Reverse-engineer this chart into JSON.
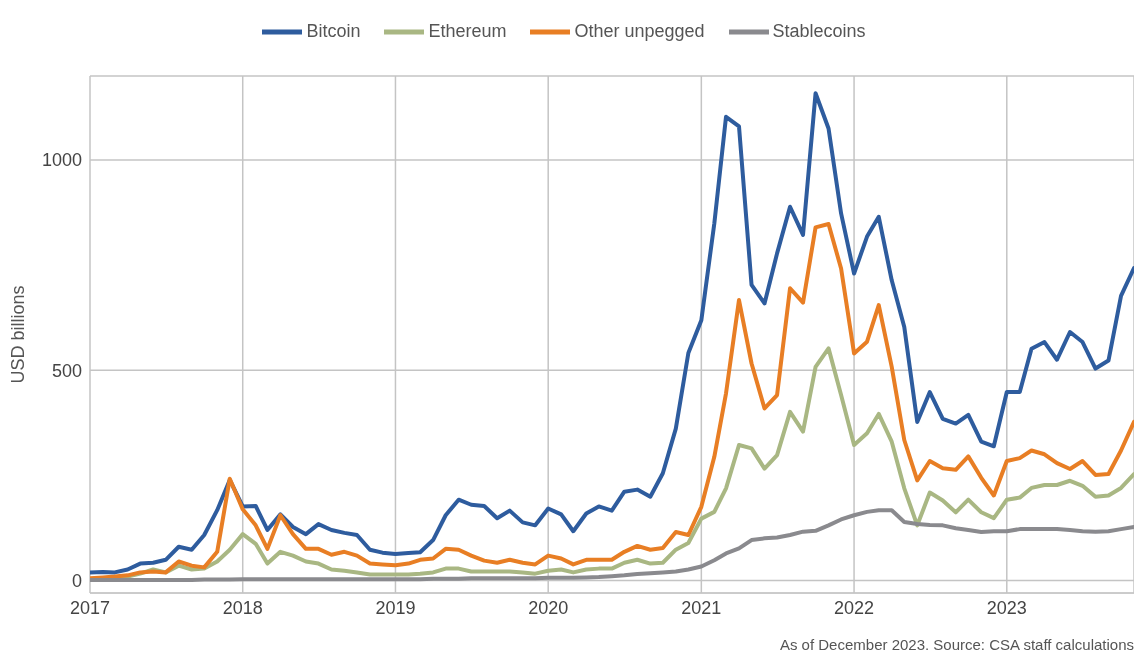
{
  "chart_data": {
    "type": "line",
    "ylabel": "USD billions",
    "legend": "top",
    "grid": true,
    "marker": "none",
    "line_style": "solid",
    "annotations": [
      "As of December 2023. Source: CSA staff calculations"
    ],
    "xlim": [
      "2017-01-01",
      "2023-11-01"
    ],
    "xticks": [
      "2017",
      "2018",
      "2019",
      "2020",
      "2021",
      "2022",
      "2023"
    ],
    "ylim": [
      -30,
      1200
    ],
    "yticks": [
      0,
      500,
      1000
    ],
    "x": [
      "2017-01",
      "2017-02",
      "2017-03",
      "2017-04",
      "2017-05",
      "2017-06",
      "2017-07",
      "2017-08",
      "2017-09",
      "2017-10",
      "2017-11",
      "2017-12",
      "2018-01",
      "2018-02",
      "2018-03",
      "2018-04",
      "2018-05",
      "2018-06",
      "2018-07",
      "2018-08",
      "2018-09",
      "2018-10",
      "2018-11",
      "2018-12",
      "2019-01",
      "2019-02",
      "2019-03",
      "2019-04",
      "2019-05",
      "2019-06",
      "2019-07",
      "2019-08",
      "2019-09",
      "2019-10",
      "2019-11",
      "2019-12",
      "2020-01",
      "2020-02",
      "2020-03",
      "2020-04",
      "2020-05",
      "2020-06",
      "2020-07",
      "2020-08",
      "2020-09",
      "2020-10",
      "2020-11",
      "2020-12",
      "2021-01",
      "2021-02",
      "2021-03",
      "2021-04",
      "2021-05",
      "2021-06",
      "2021-07",
      "2021-08",
      "2021-09",
      "2021-10",
      "2021-11",
      "2021-12",
      "2022-01",
      "2022-02",
      "2022-03",
      "2022-04",
      "2022-05",
      "2022-06",
      "2022-07",
      "2022-08",
      "2022-09",
      "2022-10",
      "2022-11",
      "2022-12",
      "2023-01",
      "2023-02",
      "2023-03",
      "2023-04",
      "2023-05",
      "2023-06",
      "2023-07",
      "2023-08",
      "2023-09",
      "2023-10",
      "2023-11"
    ],
    "series": [
      {
        "name": "Bitcoin",
        "color": "#2e5c9e",
        "values": [
          19,
          20,
          19,
          26,
          40,
          42,
          49,
          80,
          73,
          108,
          167,
          239,
          176,
          177,
          120,
          157,
          127,
          110,
          134,
          120,
          113,
          108,
          73,
          66,
          63,
          65,
          67,
          96,
          155,
          192,
          180,
          177,
          148,
          166,
          138,
          131,
          171,
          157,
          117,
          159,
          176,
          166,
          211,
          216,
          199,
          255,
          361,
          541,
          619,
          849,
          1103,
          1080,
          703,
          659,
          778,
          889,
          822,
          1159,
          1075,
          873,
          730,
          818,
          865,
          714,
          603,
          377,
          448,
          384,
          373,
          394,
          330,
          319,
          448,
          448,
          551,
          567,
          525,
          591,
          567,
          504,
          523,
          677,
          743
        ]
      },
      {
        "name": "Ethereum",
        "color": "#a9b783",
        "values": [
          3,
          4,
          6,
          9,
          16,
          26,
          19,
          35,
          26,
          28,
          45,
          73,
          110,
          87,
          40,
          68,
          59,
          45,
          40,
          26,
          23,
          19,
          14,
          14,
          14,
          14,
          16,
          19,
          28,
          28,
          21,
          21,
          21,
          21,
          19,
          16,
          23,
          26,
          19,
          26,
          28,
          28,
          42,
          49,
          40,
          42,
          73,
          89,
          147,
          163,
          219,
          322,
          314,
          266,
          298,
          401,
          354,
          508,
          552,
          441,
          322,
          350,
          396,
          330,
          219,
          131,
          209,
          190,
          162,
          192,
          162,
          148,
          192,
          197,
          220,
          227,
          227,
          237,
          225,
          199,
          202,
          220,
          253
        ]
      },
      {
        "name": "Other unpegged",
        "color": "#e87e24",
        "values": [
          5,
          7,
          9,
          12,
          19,
          21,
          19,
          45,
          35,
          31,
          68,
          242,
          169,
          131,
          75,
          155,
          110,
          75,
          75,
          61,
          68,
          59,
          40,
          38,
          36,
          40,
          49,
          52,
          75,
          73,
          59,
          47,
          42,
          49,
          42,
          38,
          59,
          52,
          38,
          49,
          49,
          49,
          68,
          82,
          73,
          77,
          115,
          108,
          175,
          294,
          445,
          667,
          516,
          409,
          441,
          695,
          661,
          840,
          848,
          742,
          540,
          568,
          655,
          508,
          334,
          238,
          284,
          267,
          263,
          295,
          244,
          202,
          284,
          291,
          309,
          300,
          279,
          265,
          284,
          251,
          253,
          309,
          377
        ]
      },
      {
        "name": "Stablecoins",
        "color": "#8a8a8e",
        "values": [
          1,
          1,
          1,
          1,
          1,
          1,
          1,
          1,
          1,
          2,
          2,
          2,
          3,
          3,
          3,
          3,
          3,
          3,
          3,
          3,
          3,
          3,
          3,
          3,
          3,
          3,
          3,
          4,
          4,
          4,
          5,
          5,
          5,
          5,
          5,
          5,
          6,
          6,
          6,
          7,
          8,
          10,
          12,
          15,
          17,
          19,
          21,
          26,
          33,
          48,
          64,
          76,
          96,
          100,
          102,
          108,
          116,
          118,
          131,
          145,
          155,
          163,
          167,
          167,
          139,
          134,
          132,
          131,
          124,
          120,
          115,
          117,
          117,
          122,
          122,
          122,
          122,
          120,
          117,
          116,
          117,
          122,
          127
        ]
      }
    ]
  }
}
